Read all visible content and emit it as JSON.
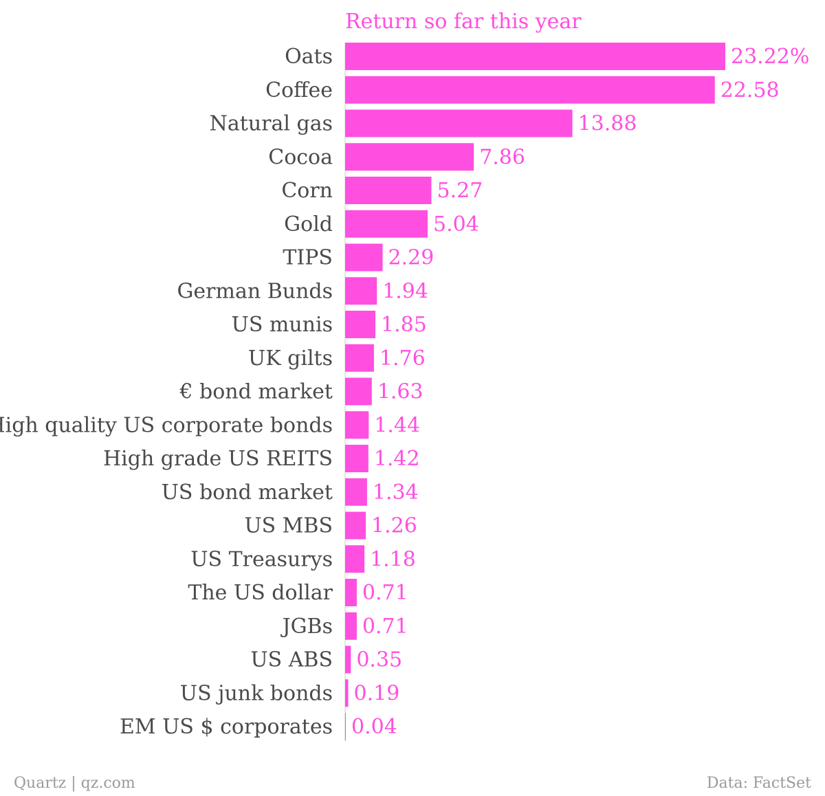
{
  "chart_data": {
    "type": "bar",
    "orientation": "horizontal",
    "title": "Return so far this year",
    "categories": [
      "Oats",
      "Coffee",
      "Natural gas",
      "Cocoa",
      "Corn",
      "Gold",
      "TIPS",
      "German Bunds",
      "US munis",
      "UK gilts",
      "€ bond market",
      "High quality US corporate bonds",
      "High grade US REITS",
      "US bond market",
      "US MBS",
      "US Treasurys",
      "The US dollar",
      "JGBs",
      "US ABS",
      "US junk bonds",
      "EM US $ corporates"
    ],
    "values": [
      23.22,
      22.58,
      13.88,
      7.86,
      5.27,
      5.04,
      2.29,
      1.94,
      1.85,
      1.76,
      1.63,
      1.44,
      1.42,
      1.34,
      1.26,
      1.18,
      0.71,
      0.71,
      0.35,
      0.19,
      0.04
    ],
    "value_labels": [
      "23.22%",
      "22.58",
      "13.88",
      "7.86",
      "5.27",
      "5.04",
      "2.29",
      "1.94",
      "1.85",
      "1.76",
      "1.63",
      "1.44",
      "1.42",
      "1.34",
      "1.26",
      "1.18",
      "0.71",
      "0.71",
      "0.35",
      "0.19",
      "0.04"
    ],
    "xlim": [
      0,
      23.22
    ],
    "grid": false,
    "bar_color": "#ff4fe0",
    "label_color": "#4a4a4a",
    "value_color": "#ff4fe0"
  },
  "footer": {
    "source_left": "Quartz | qz.com",
    "source_right": "Data: FactSet"
  }
}
